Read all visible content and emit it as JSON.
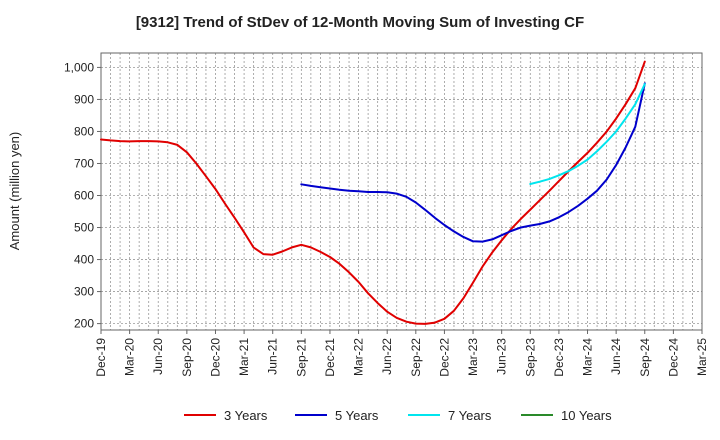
{
  "chart_data": {
    "type": "line",
    "title": "[9312]  Trend of StDev of 12-Month Moving Sum of Investing CF",
    "ylabel": "Amount (million yen)",
    "xlabel": "",
    "ylim": [
      180,
      1045
    ],
    "yticks": [
      200,
      300,
      400,
      500,
      600,
      700,
      800,
      900,
      1000
    ],
    "yticklabels": [
      "200",
      "300",
      "400",
      "500",
      "600",
      "700",
      "800",
      "900",
      "1,000"
    ],
    "xticklabels": [
      "Dec-19",
      "Mar-20",
      "Jun-20",
      "Sep-20",
      "Dec-20",
      "Mar-21",
      "Jun-21",
      "Sep-21",
      "Dec-21",
      "Mar-22",
      "Jun-22",
      "Sep-22",
      "Dec-22",
      "Mar-23",
      "Jun-23",
      "Sep-23",
      "Dec-23",
      "Mar-24",
      "Jun-24",
      "Sep-24",
      "Dec-24",
      "Mar-25"
    ],
    "x_unit": "quarters since Dec-19",
    "grid": true,
    "legend_position": "bottom",
    "series": [
      {
        "name": "3 Years",
        "color": "#e00000",
        "points": [
          [
            0,
            775
          ],
          [
            0.33,
            772
          ],
          [
            0.67,
            770
          ],
          [
            1,
            769
          ],
          [
            1.33,
            770
          ],
          [
            1.67,
            770
          ],
          [
            2,
            769
          ],
          [
            2.33,
            766
          ],
          [
            2.67,
            758
          ],
          [
            3,
            735
          ],
          [
            3.33,
            700
          ],
          [
            3.67,
            660
          ],
          [
            4,
            620
          ],
          [
            4.33,
            575
          ],
          [
            4.67,
            530
          ],
          [
            5,
            485
          ],
          [
            5.33,
            438
          ],
          [
            5.67,
            417
          ],
          [
            6,
            415
          ],
          [
            6.33,
            425
          ],
          [
            6.67,
            438
          ],
          [
            7,
            446
          ],
          [
            7.33,
            438
          ],
          [
            7.67,
            424
          ],
          [
            8,
            408
          ],
          [
            8.33,
            387
          ],
          [
            8.67,
            360
          ],
          [
            9,
            330
          ],
          [
            9.33,
            295
          ],
          [
            9.67,
            264
          ],
          [
            10,
            237
          ],
          [
            10.33,
            218
          ],
          [
            10.67,
            206
          ],
          [
            11,
            200
          ],
          [
            11.33,
            199
          ],
          [
            11.67,
            203
          ],
          [
            12,
            215
          ],
          [
            12.33,
            240
          ],
          [
            12.67,
            280
          ],
          [
            13,
            328
          ],
          [
            13.33,
            378
          ],
          [
            13.67,
            422
          ],
          [
            14,
            460
          ],
          [
            14.33,
            495
          ],
          [
            14.67,
            527
          ],
          [
            15,
            556
          ],
          [
            15.33,
            585
          ],
          [
            15.67,
            615
          ],
          [
            16,
            645
          ],
          [
            16.33,
            675
          ],
          [
            16.67,
            705
          ],
          [
            17,
            733
          ],
          [
            17.33,
            765
          ],
          [
            17.67,
            800
          ],
          [
            18,
            840
          ],
          [
            18.33,
            885
          ],
          [
            18.67,
            935
          ],
          [
            19,
            1018
          ]
        ]
      },
      {
        "name": "5 Years",
        "color": "#0000cc",
        "points": [
          [
            7,
            635
          ],
          [
            7.33,
            630
          ],
          [
            7.67,
            626
          ],
          [
            8,
            622
          ],
          [
            8.33,
            618
          ],
          [
            8.67,
            615
          ],
          [
            9,
            613
          ],
          [
            9.33,
            611
          ],
          [
            9.67,
            611
          ],
          [
            10,
            610
          ],
          [
            10.33,
            606
          ],
          [
            10.67,
            596
          ],
          [
            11,
            578
          ],
          [
            11.33,
            555
          ],
          [
            11.67,
            530
          ],
          [
            12,
            508
          ],
          [
            12.33,
            488
          ],
          [
            12.67,
            470
          ],
          [
            13,
            457
          ],
          [
            13.33,
            456
          ],
          [
            13.67,
            463
          ],
          [
            14,
            476
          ],
          [
            14.33,
            489
          ],
          [
            14.67,
            500
          ],
          [
            15,
            506
          ],
          [
            15.33,
            511
          ],
          [
            15.67,
            519
          ],
          [
            16,
            532
          ],
          [
            16.33,
            548
          ],
          [
            16.67,
            568
          ],
          [
            17,
            590
          ],
          [
            17.33,
            615
          ],
          [
            17.67,
            650
          ],
          [
            18,
            695
          ],
          [
            18.33,
            750
          ],
          [
            18.67,
            815
          ],
          [
            19,
            950
          ]
        ]
      },
      {
        "name": "7 Years",
        "color": "#00e5ee",
        "points": [
          [
            15,
            636
          ],
          [
            15.33,
            643
          ],
          [
            15.67,
            652
          ],
          [
            16,
            663
          ],
          [
            16.33,
            676
          ],
          [
            16.67,
            693
          ],
          [
            17,
            712
          ],
          [
            17.33,
            738
          ],
          [
            17.67,
            768
          ],
          [
            18,
            800
          ],
          [
            18.33,
            840
          ],
          [
            18.67,
            885
          ],
          [
            19,
            948
          ]
        ]
      },
      {
        "name": "10 Years",
        "color": "#2a8a2a",
        "points": []
      }
    ]
  }
}
